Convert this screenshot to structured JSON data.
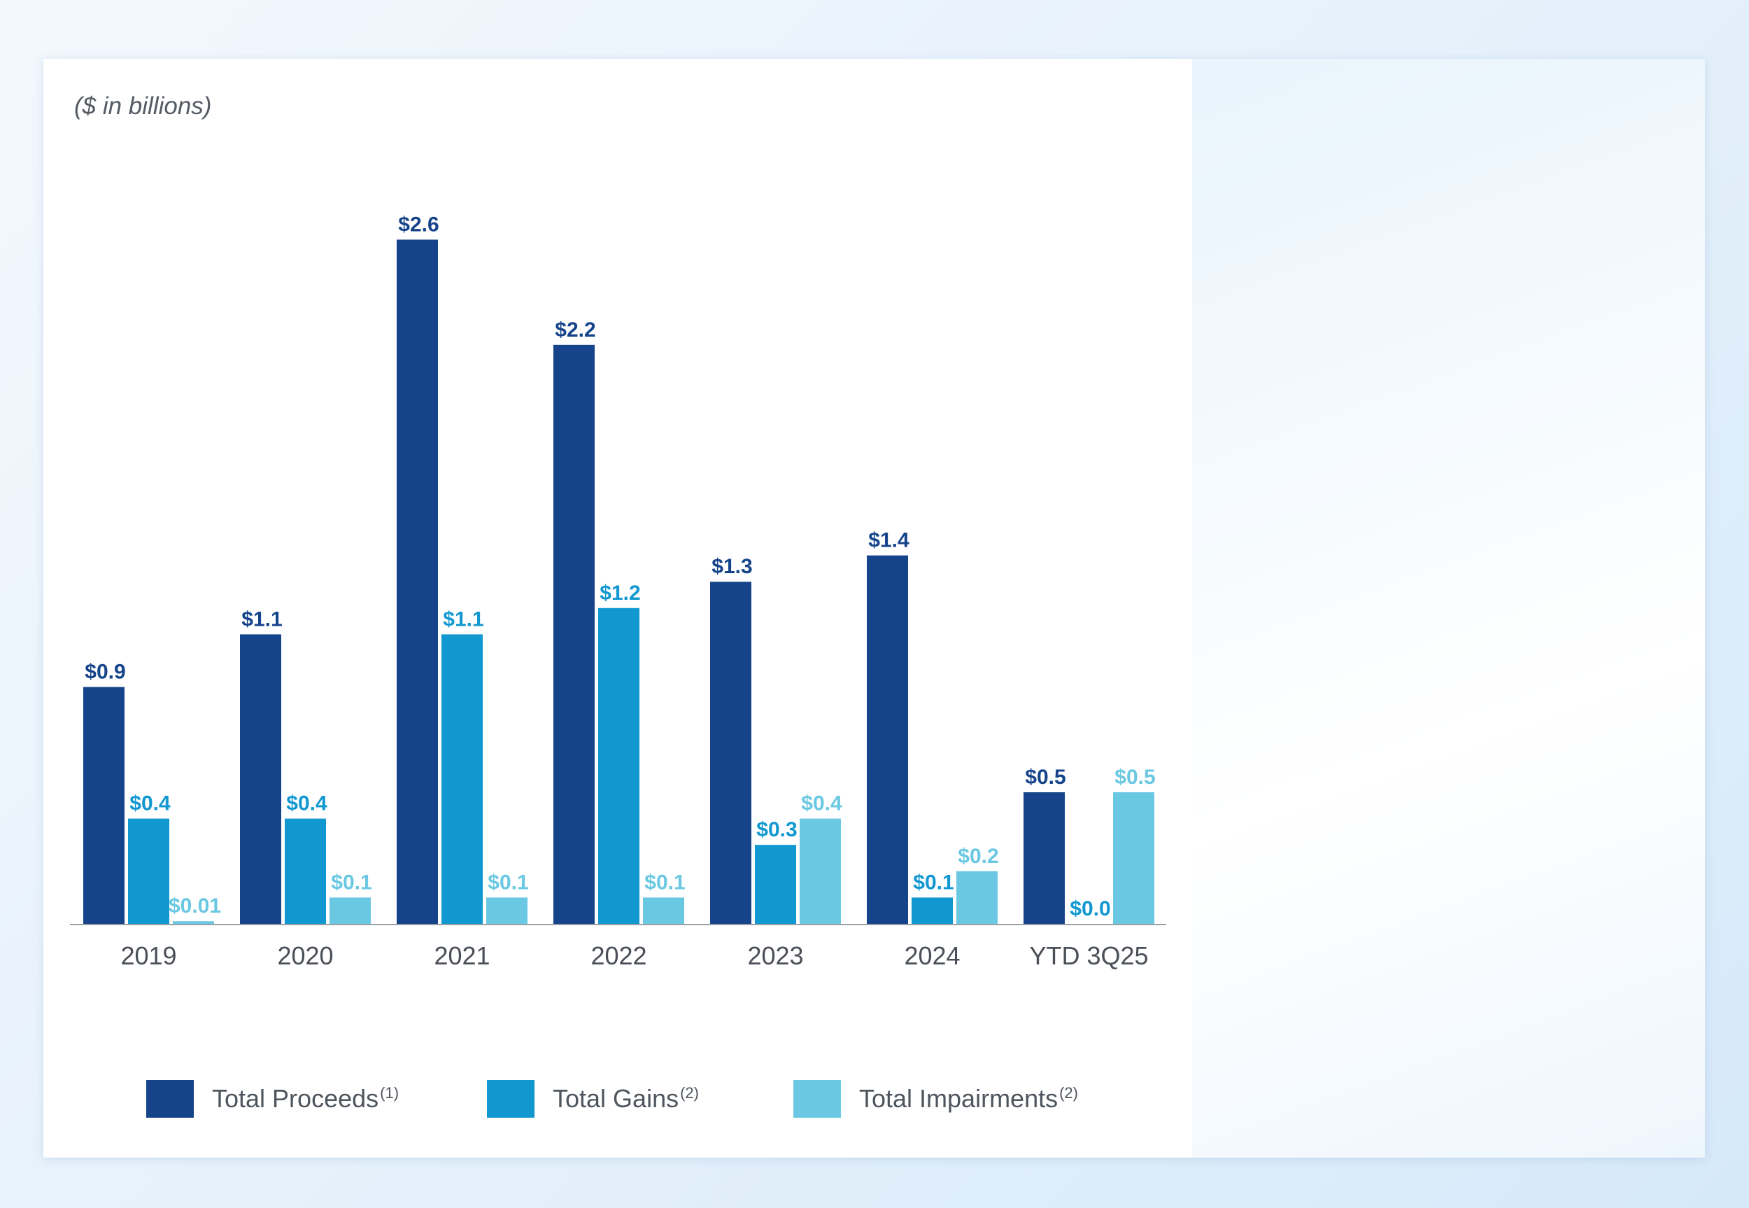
{
  "chart_data": {
    "type": "bar",
    "unit_note": "($ in billions)",
    "categories": [
      "2019",
      "2020",
      "2021",
      "2022",
      "2023",
      "2024",
      "YTD 3Q25"
    ],
    "series": [
      {
        "name": "Total Proceeds",
        "footnote": "(1)",
        "color": "#16448a",
        "values": [
          0.9,
          1.1,
          2.6,
          2.2,
          1.3,
          1.4,
          0.5
        ],
        "labels": [
          "$0.9",
          "$1.1",
          "$2.6",
          "$2.2",
          "$1.3",
          "$1.4",
          "$0.5"
        ]
      },
      {
        "name": "Total Gains",
        "footnote": "(2)",
        "color": "#1198d0",
        "values": [
          0.4,
          0.4,
          1.1,
          1.2,
          0.3,
          0.1,
          0.0
        ],
        "labels": [
          "$0.4",
          "$0.4",
          "$1.1",
          "$1.2",
          "$0.3",
          "$0.1",
          "$0.0"
        ]
      },
      {
        "name": "Total Impairments",
        "footnote": "(2)",
        "color": "#6ac8e2",
        "values": [
          0.01,
          0.1,
          0.1,
          0.1,
          0.4,
          0.2,
          0.5
        ],
        "labels": [
          "$0.01",
          "$0.1",
          "$0.1",
          "$0.1",
          "$0.4",
          "$0.2",
          "$0.5"
        ]
      }
    ],
    "ylim": [
      0,
      2.6
    ],
    "grid": false,
    "legend_position": "bottom"
  }
}
